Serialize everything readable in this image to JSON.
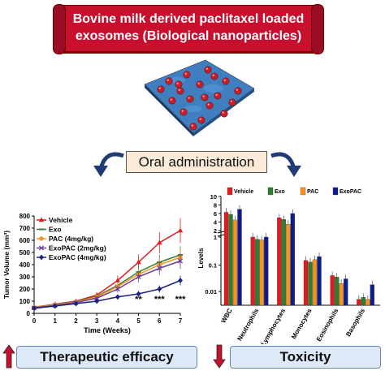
{
  "banner": {
    "line1": "Bovine milk derived paclitaxel loaded",
    "line2": "exosomes (Biological nanoparticles)"
  },
  "center": {
    "label": "Oral administration"
  },
  "efficacy": {
    "label": "Therapeutic efficacy",
    "arrow": "up"
  },
  "toxicity": {
    "label": "Toxicity",
    "arrow": "down"
  },
  "chart_data": [
    {
      "type": "line",
      "xlabel": "Time (Weeks)",
      "ylabel": "Tumor Volume (mm³)",
      "xlim": [
        0,
        7
      ],
      "ylim": [
        0,
        800
      ],
      "xticks": [
        0,
        1,
        2,
        3,
        4,
        5,
        6,
        7
      ],
      "yticks": [
        0,
        100,
        200,
        300,
        400,
        500,
        600,
        700,
        800
      ],
      "x": [
        0,
        1,
        2,
        3,
        4,
        5,
        6,
        7
      ],
      "series": [
        {
          "name": "Vehicle",
          "color": "#e41a1c",
          "marker": "triangle",
          "values": [
            50,
            75,
            100,
            150,
            270,
            420,
            580,
            680
          ]
        },
        {
          "name": "Exo",
          "color": "#2e7d32",
          "marker": "line",
          "values": [
            48,
            72,
            95,
            140,
            230,
            340,
            420,
            480
          ]
        },
        {
          "name": "PAC (4mg/kg)",
          "color": "#f7941d",
          "marker": "circle",
          "values": [
            47,
            70,
            92,
            135,
            220,
            320,
            400,
            460
          ]
        },
        {
          "name": "ExoPAC (2mg/kg)",
          "color": "#6a3d9a",
          "marker": "x",
          "values": [
            45,
            65,
            88,
            125,
            200,
            300,
            370,
            430
          ]
        },
        {
          "name": "ExoPAC (4mg/kg)",
          "color": "#1a237e",
          "marker": "diamond",
          "values": [
            42,
            60,
            80,
            100,
            135,
            160,
            200,
            270
          ]
        }
      ],
      "annotations": [
        {
          "x": 5,
          "text": "**"
        },
        {
          "x": 6,
          "text": "***"
        },
        {
          "x": 7,
          "text": "***"
        }
      ]
    },
    {
      "type": "bar",
      "ylabel": "Levels",
      "yscale": "broken-log",
      "yticks": [
        "10",
        "8",
        "6",
        "4",
        "2",
        "1",
        "0.1",
        "0.01"
      ],
      "categories": [
        "WBC",
        "Neutrophils",
        "Lymphocytes",
        "Monocytes",
        "Eosinophils",
        "Basophils"
      ],
      "series": [
        {
          "name": "Vehicle",
          "color": "#e41a1c",
          "values": [
            6.3,
            1.0,
            5.0,
            0.15,
            0.04,
            0.005
          ]
        },
        {
          "name": "Exo",
          "color": "#2e7d32",
          "values": [
            5.8,
            0.95,
            4.6,
            0.13,
            0.035,
            0.006
          ]
        },
        {
          "name": "PAC",
          "color": "#f7941d",
          "values": [
            4.5,
            0.9,
            3.5,
            0.16,
            0.02,
            0.005
          ]
        },
        {
          "name": "ExoPAC",
          "color": "#0d1b8c",
          "values": [
            7.0,
            1.0,
            6.0,
            0.21,
            0.03,
            0.018
          ]
        }
      ]
    }
  ]
}
